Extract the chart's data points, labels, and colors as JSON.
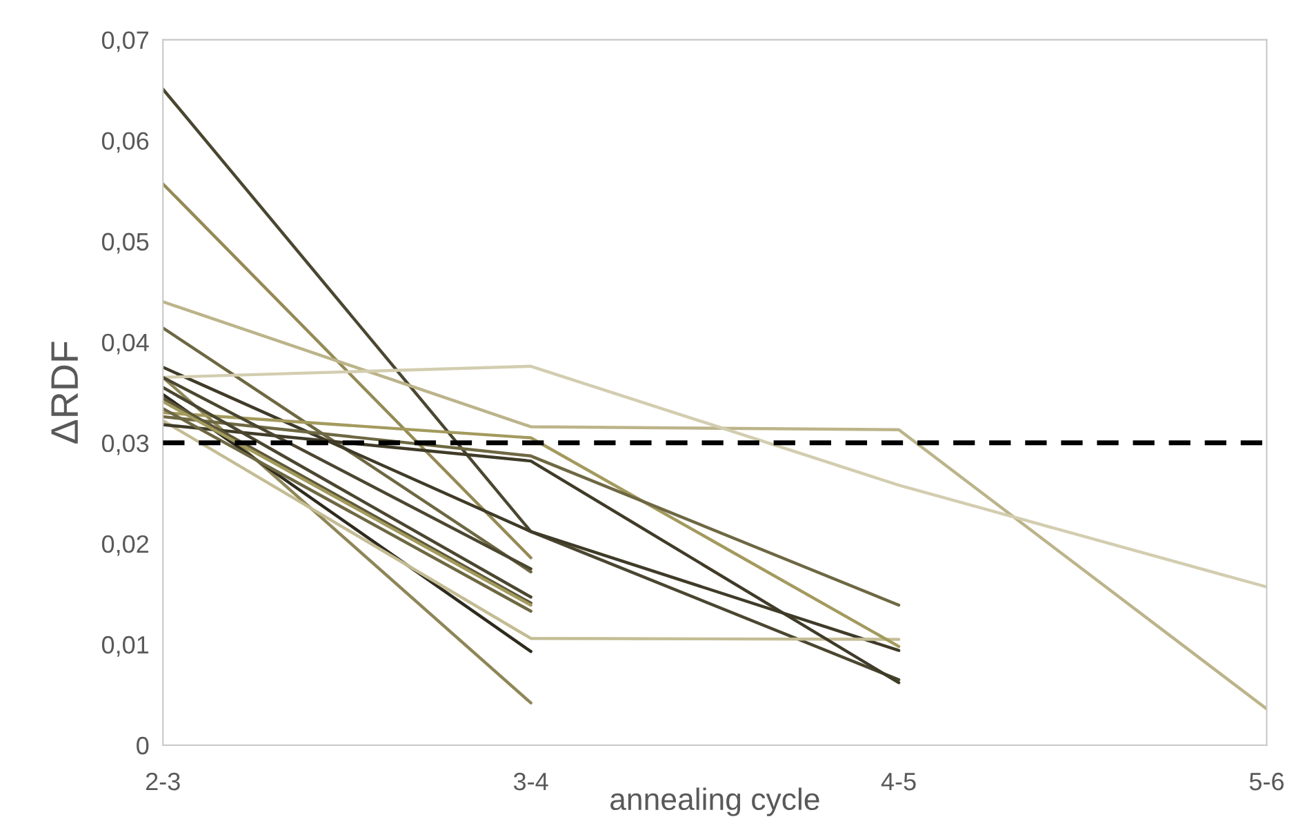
{
  "chart_data": {
    "type": "line",
    "xlabel": "annealing cycle",
    "ylabel": "ΔRDF",
    "categories": [
      "2-3",
      "3-4",
      "4-5",
      "5-6"
    ],
    "ylim": [
      0,
      0.07
    ],
    "yticks": [
      {
        "value": 0,
        "label": "0"
      },
      {
        "value": 0.01,
        "label": "0,01"
      },
      {
        "value": 0.02,
        "label": "0,02"
      },
      {
        "value": 0.03,
        "label": "0,03"
      },
      {
        "value": 0.04,
        "label": "0,04"
      },
      {
        "value": 0.05,
        "label": "0,05"
      },
      {
        "value": 0.06,
        "label": "0,06"
      },
      {
        "value": 0.07,
        "label": "0,07"
      }
    ],
    "grid": false,
    "legend": false,
    "marker": "none",
    "line_style": "solid",
    "series": [
      {
        "color": "#4a4630",
        "values": [
          0.0651,
          0.0212,
          0.0065,
          null
        ]
      },
      {
        "color": "#958a55",
        "values": [
          0.0557,
          0.0186,
          null,
          null
        ]
      },
      {
        "color": "#bcb48a",
        "values": [
          0.044,
          0.0316,
          0.0313,
          0.0036
        ]
      },
      {
        "color": "#6e6843",
        "values": [
          0.0414,
          0.0172,
          null,
          null
        ]
      },
      {
        "color": "#3f3b28",
        "values": [
          0.0375,
          0.0212,
          0.0094,
          null
        ]
      },
      {
        "color": "#d3cdb0",
        "values": [
          0.0365,
          0.0376,
          0.0258,
          0.0157
        ]
      },
      {
        "color": "#8f8658",
        "values": [
          0.0365,
          0.0042,
          null,
          null
        ]
      },
      {
        "color": "#2e2b1e",
        "values": [
          0.0348,
          0.0093,
          null,
          null
        ]
      },
      {
        "color": "#c4bc94",
        "values": [
          0.0322,
          0.0106,
          0.0105,
          null
        ]
      },
      {
        "color": "#a39a5e",
        "values": [
          0.033,
          0.0305,
          0.0098,
          null
        ]
      },
      {
        "color": "#6e6843",
        "values": [
          0.0326,
          0.0287,
          0.0139,
          null
        ]
      },
      {
        "color": "#3f3b28",
        "values": [
          0.0318,
          0.0282,
          0.0062,
          null
        ]
      },
      {
        "color": "#4a4630",
        "values": [
          0.0365,
          0.0175,
          null,
          null
        ]
      },
      {
        "color": "#4a4630",
        "values": [
          0.0355,
          0.0147,
          null,
          null
        ]
      },
      {
        "color": "#5c5738",
        "values": [
          0.0344,
          0.0141,
          null,
          null
        ]
      },
      {
        "color": "#a39a5e",
        "values": [
          0.0341,
          0.0139,
          null,
          null
        ]
      },
      {
        "color": "#6e6843",
        "values": [
          0.0334,
          0.0133,
          null,
          null
        ]
      }
    ],
    "ref_lines": [
      {
        "axis": "y",
        "value": 0.03,
        "color": "#000000",
        "line_style": "dashed"
      }
    ]
  }
}
